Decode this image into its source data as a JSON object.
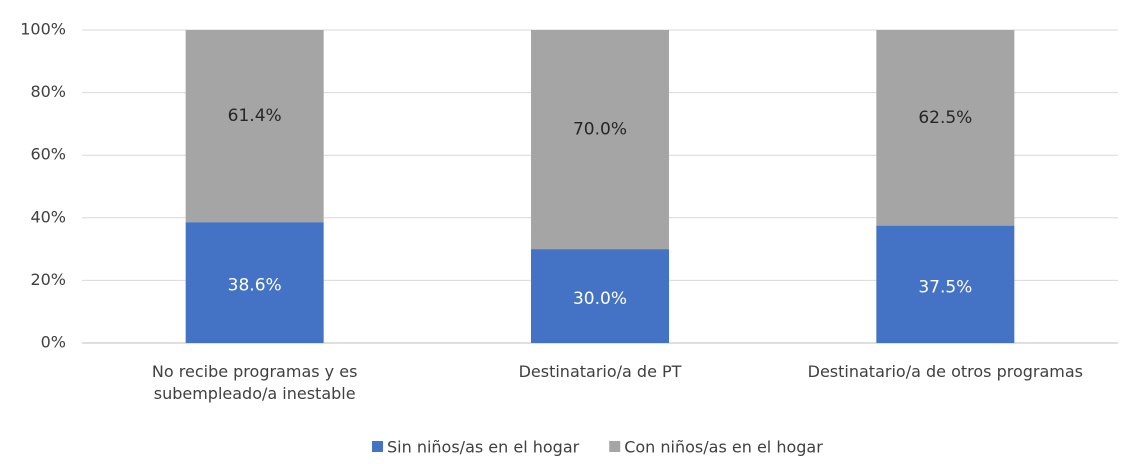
{
  "chart_data": {
    "type": "stacked_bar",
    "categories": [
      "No recibe programas y es subempleado/a inestable",
      "Destinatario/a de PT",
      "Destinatario/a de otros programas"
    ],
    "series": [
      {
        "name": "Sin niños/as en el hogar",
        "color": "#4472c4",
        "values": [
          38.6,
          30.0,
          37.5
        ],
        "value_labels": [
          "38.6%",
          "30.0%",
          "37.5%"
        ]
      },
      {
        "name": "Con niños/as en el hogar",
        "color": "#a5a5a5",
        "values": [
          61.4,
          70.0,
          62.5
        ],
        "value_labels": [
          "61.4%",
          "70.0%",
          "62.5%"
        ]
      }
    ],
    "ylim": [
      0,
      100
    ],
    "yticks": [
      {
        "value": 0,
        "label": "0%"
      },
      {
        "value": 20,
        "label": "20%"
      },
      {
        "value": 40,
        "label": "40%"
      },
      {
        "value": 60,
        "label": "60%"
      },
      {
        "value": 80,
        "label": "80%"
      },
      {
        "value": 100,
        "label": "100%"
      }
    ],
    "grid": true,
    "legend": "bottom"
  }
}
